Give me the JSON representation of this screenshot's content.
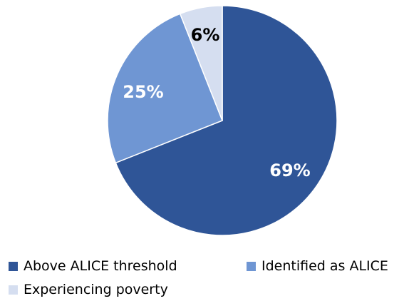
{
  "chart_data": {
    "type": "pie",
    "title": "",
    "slices": [
      {
        "name": "Above ALICE threshold",
        "value": 69,
        "label": "69%",
        "color": "#2f5597",
        "label_color": "#ffffff"
      },
      {
        "name": "Identified as ALICE",
        "value": 25,
        "label": "25%",
        "color": "#6f96d3",
        "label_color": "#ffffff"
      },
      {
        "name": "Experiencing poverty",
        "value": 6,
        "label": "6%",
        "color": "#d5def0",
        "label_color": "#000000"
      }
    ],
    "legend_position": "bottom"
  }
}
